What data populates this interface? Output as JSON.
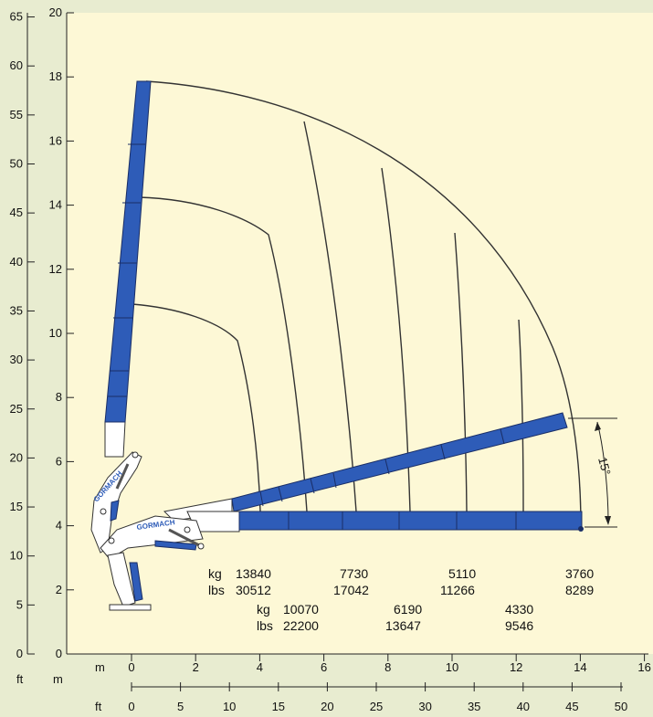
{
  "chart_data": {
    "type": "diagram",
    "axes": {
      "left_ft": {
        "label": "ft",
        "min": 0,
        "max": 65,
        "ticks": [
          0,
          5,
          10,
          15,
          20,
          25,
          30,
          35,
          40,
          45,
          50,
          55,
          60,
          65
        ]
      },
      "left_m": {
        "label": "m",
        "min": 0,
        "max": 20,
        "ticks": [
          2,
          4,
          6,
          8,
          10,
          12,
          14,
          16,
          18,
          20
        ]
      },
      "bottom_m": {
        "label": "m",
        "min": 0,
        "max": 16,
        "ticks": [
          0,
          2,
          4,
          6,
          8,
          10,
          12,
          14,
          16
        ]
      },
      "bottom_ft": {
        "label": "ft",
        "min": 0,
        "max": 50,
        "ticks": [
          0,
          5,
          10,
          15,
          20,
          25,
          30,
          35,
          40,
          45,
          50
        ]
      }
    },
    "angle_label": "15°",
    "load_table_upper": {
      "labels": [
        "kg",
        "lbs"
      ],
      "kg": [
        "13840",
        "7730",
        "5110",
        "3760"
      ],
      "lbs": [
        "30512",
        "17042",
        "11266",
        "8289"
      ]
    },
    "load_table_lower": {
      "labels": [
        "kg",
        "lbs"
      ],
      "kg": [
        "10070",
        "6190",
        "4330"
      ],
      "lbs": [
        "22200",
        "13647",
        "9546"
      ]
    },
    "brand": "GORMACH"
  },
  "colors": {
    "background": "#e8ecd0",
    "plot": "#fdf8d6",
    "boom": "#2e5cb8"
  }
}
